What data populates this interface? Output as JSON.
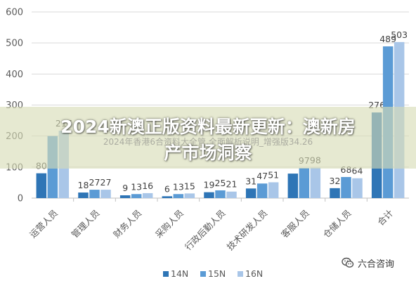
{
  "chart_data": {
    "type": "bar",
    "categories": [
      "运营人员",
      "管理人员",
      "财务人员",
      "采购人员",
      "行政后勤人员",
      "技术研发人员",
      "客服人员",
      "仓储人员",
      "合计"
    ],
    "series": [
      {
        "name": "14N",
        "values": [
          80,
          18,
          9,
          6,
          19,
          31,
          79,
          32,
          276
        ]
      },
      {
        "name": "15N",
        "values": [
          200,
          27,
          13,
          13,
          25,
          47,
          97,
          68,
          489
        ]
      },
      {
        "name": "16N",
        "values": [
          217,
          27,
          16,
          15,
          21,
          51,
          98,
          64,
          503
        ]
      }
    ],
    "data_labels": [
      [
        "80",
        "",
        "217"
      ],
      [
        "18",
        "27",
        "27"
      ],
      [
        "9",
        "13",
        "16"
      ],
      [
        "6",
        "13",
        "15"
      ],
      [
        "19",
        "25",
        "21"
      ],
      [
        "31",
        "47",
        "51"
      ],
      [
        "",
        "97",
        "98"
      ],
      [
        "32",
        "68",
        "64"
      ],
      [
        "276",
        "489",
        "503"
      ]
    ],
    "yticks": [
      "0",
      "100",
      "200",
      "300",
      "400",
      "500",
      "600"
    ],
    "ylim": [
      0,
      600
    ],
    "grid": true,
    "legend_position": "bottom",
    "colors": [
      "#2e75b6",
      "#5b9bd5",
      "#a9c6e8"
    ]
  },
  "overlay": {
    "title_line1": "2024新澳正版资料最新更新：澳新房",
    "title_line2": "产市场洞察",
    "subtitle": "2024年香港6合资料大全管,全面解析说明_增强版34.26",
    "band_color": "#d6dcb4"
  },
  "watermark": {
    "text": "六合咨询",
    "icon": "wechat-icon"
  }
}
